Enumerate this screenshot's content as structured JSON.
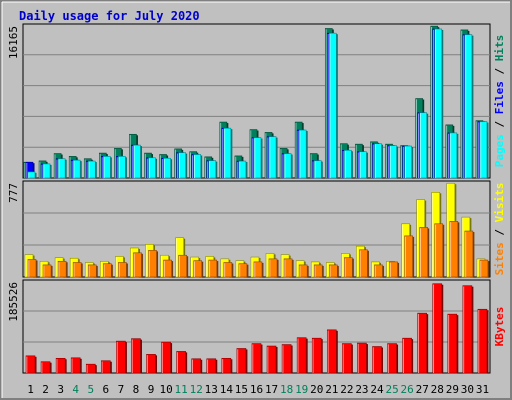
{
  "title": "Daily usage for July 2020",
  "colors": {
    "background": "#c0c0c0",
    "title": "#0000cc",
    "hits": "#00805c",
    "files": "#0000ff",
    "pages": "#00ffff",
    "visits": "#ffff00",
    "sites": "#ff8000",
    "kbytes": "#ff0000",
    "weekend_label": "#00805c",
    "weekday_label": "#000000"
  },
  "chart_data": [
    {
      "type": "bar",
      "panel": "hits-files-pages",
      "max_label": "16165",
      "legend": [
        "Hits",
        "Files",
        "Pages"
      ],
      "categories": [
        "1",
        "2",
        "3",
        "4",
        "5",
        "6",
        "7",
        "8",
        "9",
        "10",
        "11",
        "12",
        "13",
        "14",
        "15",
        "16",
        "17",
        "18",
        "19",
        "20",
        "21",
        "22",
        "23",
        "24",
        "25",
        "26",
        "27",
        "28",
        "29",
        "30",
        "31"
      ],
      "weekend_days": [
        "4",
        "5",
        "11",
        "12",
        "18",
        "19",
        "25",
        "26"
      ],
      "series": [
        {
          "name": "Hits",
          "values": [
            1680,
            1820,
            2600,
            2300,
            2050,
            2650,
            3150,
            4650,
            2650,
            2500,
            3100,
            2800,
            2250,
            5950,
            2350,
            5150,
            4850,
            3150,
            5950,
            2600,
            15900,
            3650,
            3600,
            3850,
            3600,
            3450,
            8450,
            16150,
            5650,
            15750,
            6100
          ]
        },
        {
          "name": "Files",
          "values": [
            1680,
            1500,
            2050,
            1900,
            1800,
            2300,
            2300,
            3500,
            2150,
            2100,
            2700,
            2500,
            1850,
            5300,
            1800,
            4300,
            4400,
            2600,
            5100,
            1850,
            15400,
            2950,
            2800,
            3650,
            3450,
            3400,
            6950,
            15850,
            4800,
            15250,
            6000
          ]
        },
        {
          "name": "Pages",
          "values": [
            650,
            1500,
            2050,
            1900,
            1800,
            2300,
            2300,
            3500,
            2150,
            2100,
            2700,
            2500,
            1850,
            5300,
            1800,
            4300,
            4400,
            2600,
            5100,
            1850,
            15400,
            2950,
            2800,
            3650,
            3450,
            3400,
            6950,
            15850,
            4800,
            15250,
            6000
          ]
        }
      ],
      "ylim": [
        0,
        16165
      ]
    },
    {
      "type": "bar",
      "panel": "visits-sites",
      "max_label": "777",
      "legend": [
        "Visits",
        "Sites"
      ],
      "categories": [
        "1",
        "2",
        "3",
        "4",
        "5",
        "6",
        "7",
        "8",
        "9",
        "10",
        "11",
        "12",
        "13",
        "14",
        "15",
        "16",
        "17",
        "18",
        "19",
        "20",
        "21",
        "22",
        "23",
        "24",
        "25",
        "26",
        "27",
        "28",
        "29",
        "30",
        "31"
      ],
      "series": [
        {
          "name": "Visits",
          "values": [
            185,
            130,
            160,
            155,
            120,
            130,
            170,
            240,
            270,
            180,
            325,
            165,
            170,
            150,
            135,
            165,
            195,
            185,
            135,
            125,
            120,
            195,
            255,
            125,
            130,
            440,
            640,
            700,
            775,
            495,
            150
          ]
        },
        {
          "name": "Sites",
          "values": [
            145,
            100,
            130,
            120,
            100,
            110,
            120,
            200,
            220,
            140,
            180,
            135,
            140,
            120,
            110,
            125,
            150,
            150,
            100,
            100,
            100,
            160,
            225,
            100,
            125,
            340,
            410,
            440,
            460,
            380,
            140
          ]
        }
      ],
      "ylim": [
        0,
        777
      ]
    },
    {
      "type": "bar",
      "panel": "kbytes",
      "max_label": "185526",
      "legend": [
        "KBytes"
      ],
      "categories": [
        "1",
        "2",
        "3",
        "4",
        "5",
        "6",
        "7",
        "8",
        "9",
        "10",
        "11",
        "12",
        "13",
        "14",
        "15",
        "16",
        "17",
        "18",
        "19",
        "20",
        "21",
        "22",
        "23",
        "24",
        "25",
        "26",
        "27",
        "28",
        "29",
        "30",
        "31"
      ],
      "series": [
        {
          "name": "KBytes",
          "values": [
            35000,
            23000,
            30000,
            31000,
            18000,
            25000,
            65000,
            70000,
            38000,
            63000,
            44000,
            29000,
            29000,
            30000,
            50000,
            60000,
            55000,
            58000,
            72000,
            71000,
            88000,
            60000,
            61000,
            54000,
            60000,
            71000,
            122000,
            182000,
            120000,
            178000,
            130000
          ]
        }
      ],
      "ylim": [
        0,
        185526
      ]
    }
  ]
}
